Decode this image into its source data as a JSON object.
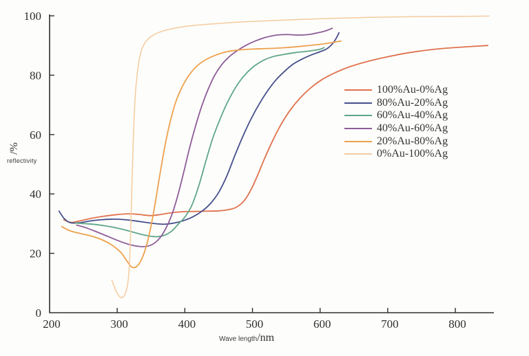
{
  "figure": {
    "background": "#fdfdfb",
    "axis_color": "#2e2e2e",
    "text_color": "#2f2f2f"
  },
  "chart_data": {
    "type": "line",
    "title": "",
    "xlabel": "Wave length",
    "xlabel_unit": "/nm",
    "ylabel": "reflectivity",
    "ylabel_unit": "/%",
    "grid": false,
    "legend_position": "right-middle",
    "x_axis": {
      "min": 200,
      "max": 857,
      "ticks": [
        200,
        300,
        400,
        500,
        600,
        700,
        800
      ]
    },
    "y_axis": {
      "min": 0,
      "max": 100,
      "ticks": [
        0,
        20,
        40,
        60,
        80,
        100
      ]
    },
    "series": [
      {
        "name": "100%Au-0%Ag",
        "color": "#e0714e",
        "width": 1.8,
        "points": [
          [
            221,
            31.3
          ],
          [
            232,
            30.4
          ],
          [
            246,
            31.0
          ],
          [
            262,
            31.8
          ],
          [
            280,
            32.5
          ],
          [
            298,
            33.0
          ],
          [
            316,
            33.3
          ],
          [
            332,
            33.1
          ],
          [
            348,
            32.7
          ],
          [
            362,
            33.0
          ],
          [
            378,
            33.6
          ],
          [
            396,
            34.0
          ],
          [
            414,
            34.1
          ],
          [
            432,
            34.2
          ],
          [
            450,
            34.3
          ],
          [
            464,
            34.7
          ],
          [
            476,
            35.5
          ],
          [
            488,
            37.8
          ],
          [
            498,
            41.5
          ],
          [
            508,
            46.5
          ],
          [
            518,
            52.0
          ],
          [
            530,
            58.0
          ],
          [
            542,
            63.3
          ],
          [
            556,
            68.3
          ],
          [
            570,
            72.2
          ],
          [
            586,
            75.7
          ],
          [
            602,
            78.4
          ],
          [
            620,
            80.6
          ],
          [
            642,
            82.7
          ],
          [
            668,
            84.5
          ],
          [
            698,
            86.1
          ],
          [
            732,
            87.6
          ],
          [
            772,
            88.8
          ],
          [
            812,
            89.5
          ],
          [
            848,
            90.0
          ]
        ]
      },
      {
        "name": "80%Au-20%Ag",
        "color": "#454e8c",
        "width": 1.8,
        "points": [
          [
            214,
            34.2
          ],
          [
            222,
            31.6
          ],
          [
            231,
            30.3
          ],
          [
            244,
            30.3
          ],
          [
            260,
            30.9
          ],
          [
            276,
            31.3
          ],
          [
            292,
            31.5
          ],
          [
            308,
            31.4
          ],
          [
            324,
            31.0
          ],
          [
            340,
            30.5
          ],
          [
            356,
            30.0
          ],
          [
            370,
            29.8
          ],
          [
            384,
            30.2
          ],
          [
            398,
            31.0
          ],
          [
            412,
            32.3
          ],
          [
            426,
            34.3
          ],
          [
            438,
            36.8
          ],
          [
            450,
            40.5
          ],
          [
            462,
            46.0
          ],
          [
            474,
            53.0
          ],
          [
            486,
            59.5
          ],
          [
            498,
            65.3
          ],
          [
            510,
            70.3
          ],
          [
            522,
            74.6
          ],
          [
            534,
            78.2
          ],
          [
            547,
            81.2
          ],
          [
            560,
            83.7
          ],
          [
            574,
            85.5
          ],
          [
            588,
            86.9
          ],
          [
            600,
            87.9
          ],
          [
            610,
            88.9
          ],
          [
            618,
            90.5
          ],
          [
            624,
            92.5
          ],
          [
            628,
            94.3
          ]
        ]
      },
      {
        "name": "60%Au-40%Ag",
        "color": "#5ea687",
        "width": 1.8,
        "points": [
          [
            238,
            30.2
          ],
          [
            252,
            30.0
          ],
          [
            268,
            29.7
          ],
          [
            284,
            29.2
          ],
          [
            300,
            28.5
          ],
          [
            316,
            27.6
          ],
          [
            332,
            26.6
          ],
          [
            346,
            25.9
          ],
          [
            358,
            25.6
          ],
          [
            370,
            26.1
          ],
          [
            381,
            27.6
          ],
          [
            391,
            30.0
          ],
          [
            401,
            32.5
          ],
          [
            411,
            36.5
          ],
          [
            421,
            43.0
          ],
          [
            431,
            51.0
          ],
          [
            441,
            58.6
          ],
          [
            451,
            64.6
          ],
          [
            461,
            69.9
          ],
          [
            471,
            74.3
          ],
          [
            481,
            77.9
          ],
          [
            492,
            80.9
          ],
          [
            504,
            83.3
          ],
          [
            517,
            85.1
          ],
          [
            531,
            86.3
          ],
          [
            547,
            87.0
          ],
          [
            563,
            87.6
          ],
          [
            579,
            88.0
          ],
          [
            592,
            88.4
          ],
          [
            601,
            88.8
          ],
          [
            606,
            89.3
          ]
        ]
      },
      {
        "name": "40%Au-60%Ag",
        "color": "#8d5c98",
        "width": 1.8,
        "points": [
          [
            240,
            29.5
          ],
          [
            254,
            28.6
          ],
          [
            270,
            27.2
          ],
          [
            286,
            25.7
          ],
          [
            302,
            24.2
          ],
          [
            316,
            23.1
          ],
          [
            330,
            22.4
          ],
          [
            342,
            22.3
          ],
          [
            352,
            23.0
          ],
          [
            362,
            24.9
          ],
          [
            371,
            28.0
          ],
          [
            380,
            32.5
          ],
          [
            389,
            39.0
          ],
          [
            398,
            47.0
          ],
          [
            407,
            55.5
          ],
          [
            416,
            63.0
          ],
          [
            425,
            69.6
          ],
          [
            434,
            75.0
          ],
          [
            444,
            79.9
          ],
          [
            454,
            83.4
          ],
          [
            465,
            86.1
          ],
          [
            477,
            88.2
          ],
          [
            490,
            90.0
          ],
          [
            504,
            91.5
          ],
          [
            519,
            92.7
          ],
          [
            535,
            93.5
          ],
          [
            551,
            93.7
          ],
          [
            567,
            93.5
          ],
          [
            583,
            93.7
          ],
          [
            597,
            94.3
          ],
          [
            609,
            95.0
          ],
          [
            618,
            95.8
          ]
        ]
      },
      {
        "name": "20%Au-80%Ag",
        "color": "#eea04c",
        "width": 1.8,
        "points": [
          [
            218,
            29.0
          ],
          [
            230,
            27.6
          ],
          [
            245,
            26.7
          ],
          [
            260,
            25.9
          ],
          [
            275,
            24.8
          ],
          [
            290,
            23.1
          ],
          [
            305,
            20.4
          ],
          [
            315,
            17.2
          ],
          [
            322,
            15.3
          ],
          [
            330,
            15.8
          ],
          [
            338,
            19.0
          ],
          [
            346,
            25.0
          ],
          [
            354,
            34.0
          ],
          [
            362,
            45.0
          ],
          [
            370,
            55.5
          ],
          [
            378,
            64.0
          ],
          [
            386,
            70.6
          ],
          [
            395,
            75.6
          ],
          [
            405,
            79.6
          ],
          [
            417,
            82.9
          ],
          [
            430,
            85.1
          ],
          [
            445,
            86.7
          ],
          [
            462,
            87.9
          ],
          [
            480,
            88.5
          ],
          [
            500,
            88.8
          ],
          [
            525,
            89.0
          ],
          [
            550,
            89.3
          ],
          [
            575,
            89.8
          ],
          [
            600,
            90.4
          ],
          [
            618,
            91.0
          ],
          [
            631,
            91.5
          ]
        ]
      },
      {
        "name": "0%Au-100%Ag",
        "color": "#f5cb9e",
        "width": 1.5,
        "points": [
          [
            292,
            11.0
          ],
          [
            298,
            7.5
          ],
          [
            304,
            5.3
          ],
          [
            310,
            5.6
          ],
          [
            315,
            9.0
          ],
          [
            318,
            16.0
          ],
          [
            320,
            28.0
          ],
          [
            322,
            45.0
          ],
          [
            324,
            60.0
          ],
          [
            327,
            74.0
          ],
          [
            331,
            83.0
          ],
          [
            336,
            88.5
          ],
          [
            343,
            91.5
          ],
          [
            352,
            93.3
          ],
          [
            364,
            94.6
          ],
          [
            380,
            95.6
          ],
          [
            400,
            96.4
          ],
          [
            425,
            97.0
          ],
          [
            455,
            97.5
          ],
          [
            490,
            98.0
          ],
          [
            530,
            98.4
          ],
          [
            575,
            98.8
          ],
          [
            625,
            99.2
          ],
          [
            680,
            99.5
          ],
          [
            740,
            99.7
          ],
          [
            800,
            99.8
          ],
          [
            850,
            99.9
          ]
        ]
      }
    ]
  },
  "legend": {
    "entries": [
      {
        "label": "100%Au-0%Ag",
        "color": "#e0714e"
      },
      {
        "label": "80%Au-20%Ag",
        "color": "#454e8c"
      },
      {
        "label": "60%Au-40%Ag",
        "color": "#5ea687"
      },
      {
        "label": "40%Au-60%Ag",
        "color": "#8d5c98"
      },
      {
        "label": "20%Au-80%Ag",
        "color": "#eea04c"
      },
      {
        "label": "0%Au-100%Ag",
        "color": "#f5cb9e"
      }
    ]
  }
}
